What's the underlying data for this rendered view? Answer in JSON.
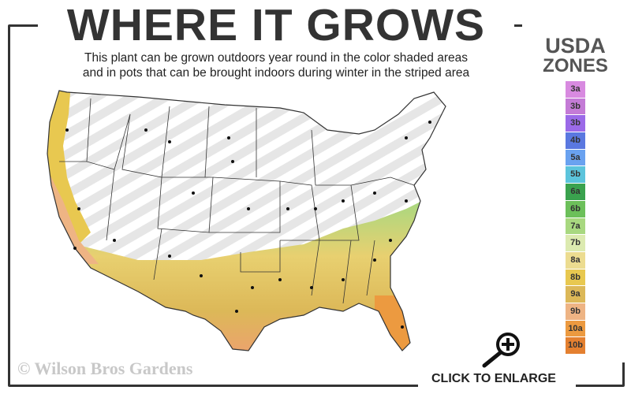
{
  "title": "WHERE IT GROWS",
  "subtitle_line1": "This plant can be grown outdoors year round in the color shaded areas",
  "subtitle_line2": "and in pots that can be brought indoors during winter in the striped area",
  "legend": {
    "title_line1": "USDA",
    "title_line2": "ZONES",
    "zones": [
      {
        "label": "3a",
        "color": "#d88ae0"
      },
      {
        "label": "3b",
        "color": "#c47bd6"
      },
      {
        "label": "3b",
        "color": "#9b6ae8"
      },
      {
        "label": "4b",
        "color": "#5a78e0"
      },
      {
        "label": "5a",
        "color": "#6aa2f0"
      },
      {
        "label": "5b",
        "color": "#5cc4dc"
      },
      {
        "label": "6a",
        "color": "#3aa24e"
      },
      {
        "label": "6b",
        "color": "#6cc05a"
      },
      {
        "label": "7a",
        "color": "#a8d880"
      },
      {
        "label": "7b",
        "color": "#dceab0"
      },
      {
        "label": "8a",
        "color": "#ecdc90"
      },
      {
        "label": "8b",
        "color": "#e8c850"
      },
      {
        "label": "9a",
        "color": "#dcb858"
      },
      {
        "label": "9b",
        "color": "#eeb484"
      },
      {
        "label": "10a",
        "color": "#ec9a40"
      },
      {
        "label": "10b",
        "color": "#e48030"
      }
    ]
  },
  "map_legend_meaning": {
    "shaded": "outdoors year round",
    "striped": "in pots, indoors during winter"
  },
  "copyright": "© Wilson Bros Gardens",
  "enlarge_label": "CLICK TO ENLARGE",
  "icons": {
    "enlarge": "magnifier-plus-icon"
  }
}
